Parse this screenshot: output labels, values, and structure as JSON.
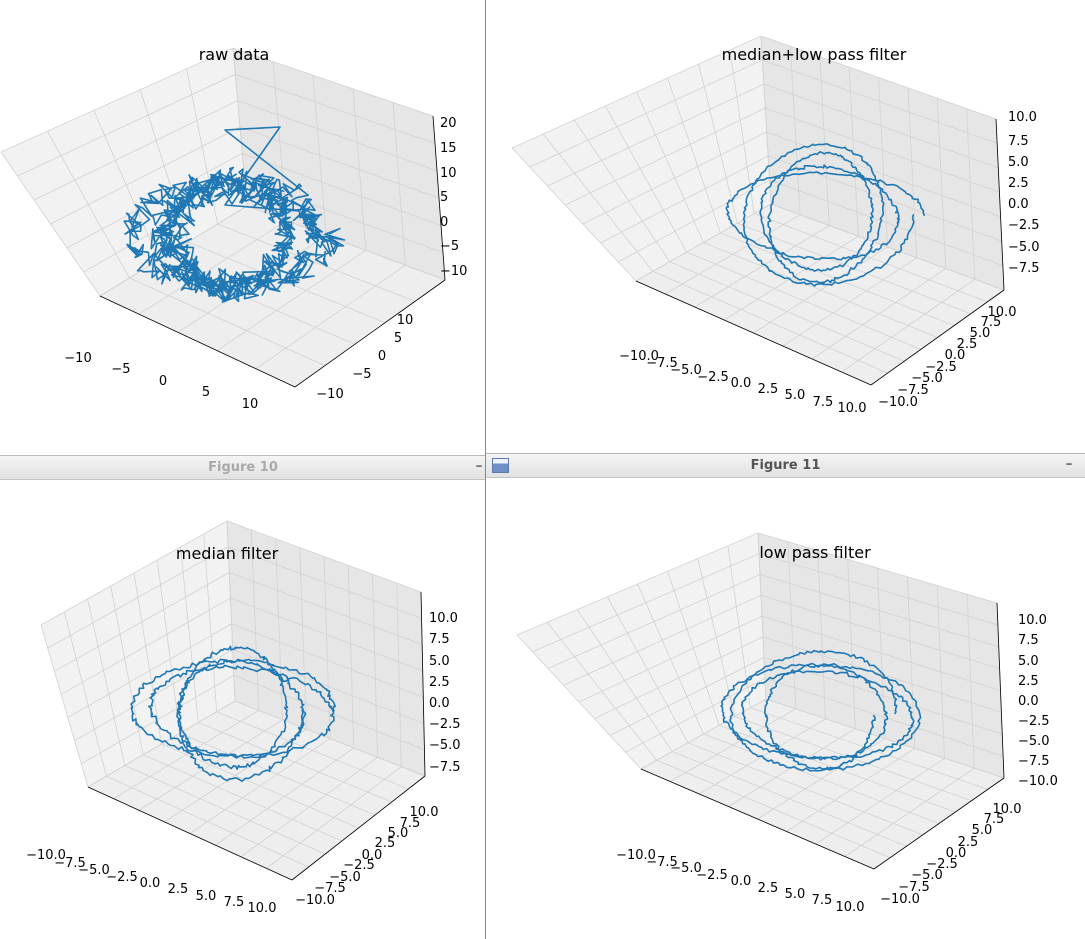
{
  "windows": {
    "figure10_title": "Figure 10",
    "figure11_title": "Figure 11",
    "minimize_label": "–"
  },
  "chart_data": [
    {
      "type": "line3d",
      "title": "raw data",
      "xlim": [
        -13,
        13
      ],
      "ylim": [
        -13,
        13
      ],
      "zlim": [
        -13,
        22
      ],
      "x_ticks": [
        "−10",
        "−5",
        "0",
        "5",
        "10"
      ],
      "y_ticks": [
        "−10",
        "−5",
        "0",
        "5",
        "10"
      ],
      "z_ticks": [
        "−10",
        "−5",
        "0",
        "5",
        "10",
        "15",
        "20"
      ],
      "grid": true,
      "color": "#1f77b4"
    },
    {
      "type": "line3d",
      "title": "median+low pass filter",
      "xlim": [
        -10,
        10
      ],
      "ylim": [
        -10,
        10
      ],
      "zlim": [
        -9,
        10.5
      ],
      "x_ticks": [
        "−10.0",
        "−7.5",
        "−5.0",
        "−2.5",
        "0.0",
        "2.5",
        "5.0",
        "7.5",
        "10.0"
      ],
      "y_ticks": [
        "−10.0",
        "−7.5",
        "−5.0",
        "−2.5",
        "0.0",
        "2.5",
        "5.0",
        "7.5",
        "10.0"
      ],
      "z_ticks": [
        "−7.5",
        "−5.0",
        "−2.5",
        "0.0",
        "2.5",
        "5.0",
        "7.5",
        "10.0"
      ],
      "grid": true,
      "color": "#1f77b4"
    },
    {
      "type": "line3d",
      "title": "median filter",
      "xlim": [
        -10,
        10
      ],
      "ylim": [
        -10,
        10
      ],
      "zlim": [
        -9,
        10.5
      ],
      "x_ticks": [
        "−10.0",
        "−7.5",
        "−5.0",
        "−2.5",
        "0.0",
        "2.5",
        "5.0",
        "7.5",
        "10.0"
      ],
      "y_ticks": [
        "−10.0",
        "−7.5",
        "−5.0",
        "−2.5",
        "0.0",
        "2.5",
        "5.0",
        "7.5",
        "10.0"
      ],
      "z_ticks": [
        "−7.5",
        "−5.0",
        "−2.5",
        "0.0",
        "2.5",
        "5.0",
        "7.5",
        "10.0"
      ],
      "grid": true,
      "color": "#1f77b4"
    },
    {
      "type": "line3d",
      "title": "low pass filter",
      "xlim": [
        -10,
        10
      ],
      "ylim": [
        -10,
        10
      ],
      "zlim": [
        -10,
        11
      ],
      "x_ticks": [
        "−10.0",
        "−7.5",
        "−5.0",
        "−2.5",
        "0.0",
        "2.5",
        "5.0",
        "7.5",
        "10.0"
      ],
      "y_ticks": [
        "−10.0",
        "−7.5",
        "−5.0",
        "−2.5",
        "0.0",
        "2.5",
        "5.0",
        "7.5",
        "10.0"
      ],
      "z_ticks": [
        "−10.0",
        "−7.5",
        "−5.0",
        "−2.5",
        "0.0",
        "2.5",
        "5.0",
        "7.5",
        "10.0"
      ],
      "grid": true,
      "color": "#1f77b4"
    }
  ]
}
